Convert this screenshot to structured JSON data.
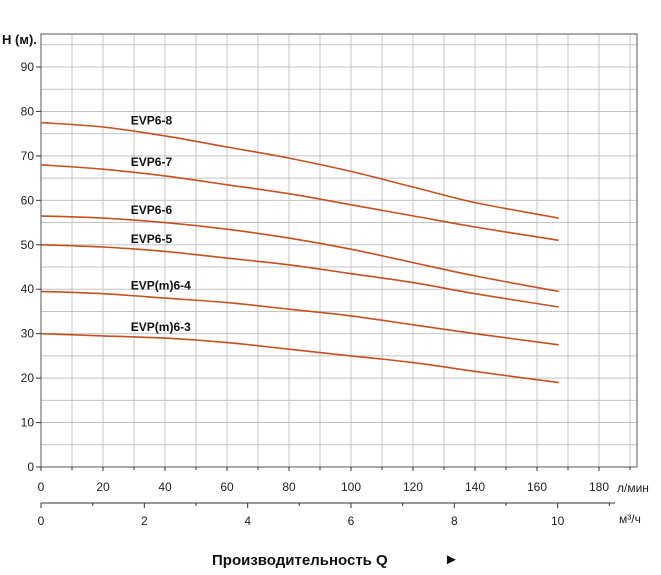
{
  "chart_data": {
    "type": "line",
    "title": "",
    "ylabel": "H (м).",
    "xlabel": "Производительность Q",
    "xlabel_arrow": "►",
    "x_unit_primary": "л/мин",
    "x_unit_secondary": "м³/ч",
    "ylim": [
      0,
      90
    ],
    "xlim": [
      0,
      190
    ],
    "y_ticks": [
      0,
      10,
      20,
      30,
      40,
      50,
      60,
      70,
      80,
      90
    ],
    "x_ticks_primary": [
      0,
      20,
      40,
      60,
      80,
      100,
      120,
      140,
      160,
      180
    ],
    "x_ticks_secondary": [
      0,
      2,
      4,
      6,
      8,
      10
    ],
    "grid": true,
    "line_color": "#c8501e",
    "series": [
      {
        "name": "EVP6-8",
        "x": [
          0,
          20,
          40,
          60,
          80,
          100,
          120,
          140,
          167
        ],
        "y": [
          77.5,
          76.5,
          74.5,
          72,
          69.5,
          66.5,
          63,
          59.5,
          56
        ]
      },
      {
        "name": "EVP6-7",
        "x": [
          0,
          20,
          40,
          60,
          80,
          100,
          120,
          140,
          167
        ],
        "y": [
          68,
          67,
          65.5,
          63.5,
          61.5,
          59,
          56.5,
          54,
          51
        ]
      },
      {
        "name": "EVP6-6",
        "x": [
          0,
          20,
          40,
          60,
          80,
          100,
          120,
          140,
          167
        ],
        "y": [
          56.5,
          56,
          55,
          53.5,
          51.5,
          49,
          46,
          43,
          39.5
        ]
      },
      {
        "name": "EVP6-5",
        "x": [
          0,
          20,
          40,
          60,
          80,
          100,
          120,
          140,
          167
        ],
        "y": [
          50,
          49.5,
          48.5,
          47,
          45.5,
          43.5,
          41.5,
          39,
          36
        ]
      },
      {
        "name": "EVP(m)6-4",
        "x": [
          0,
          20,
          40,
          60,
          80,
          100,
          120,
          140,
          167
        ],
        "y": [
          39.5,
          39,
          38,
          37,
          35.5,
          34,
          32,
          30,
          27.5
        ]
      },
      {
        "name": "EVP(m)6-3",
        "x": [
          0,
          20,
          40,
          60,
          80,
          100,
          120,
          140,
          167
        ],
        "y": [
          30,
          29.5,
          29,
          28,
          26.5,
          25,
          23.5,
          21.5,
          19
        ]
      }
    ]
  }
}
